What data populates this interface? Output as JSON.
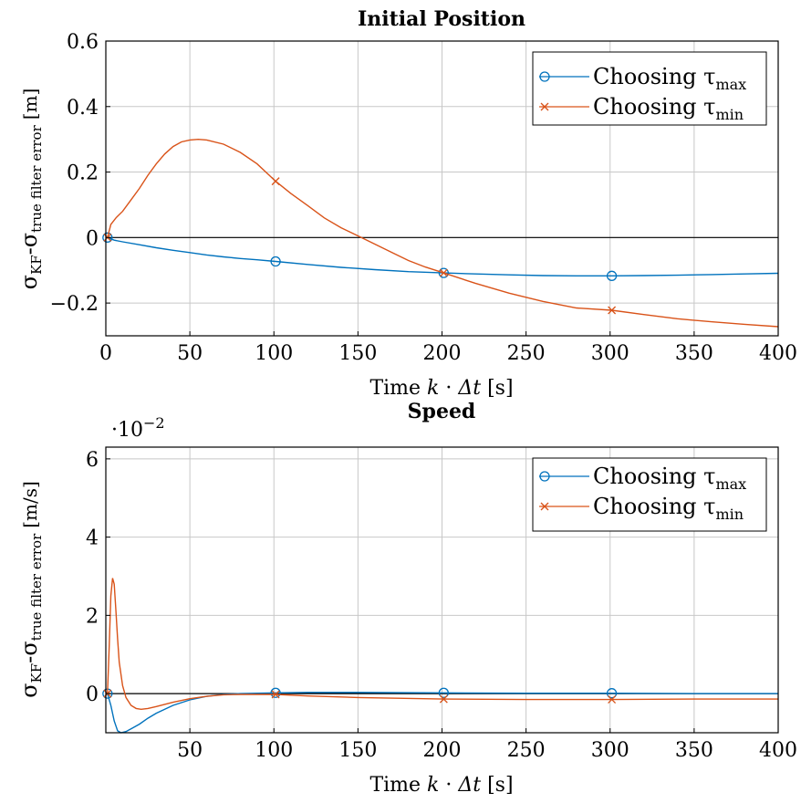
{
  "chart_data": [
    {
      "type": "line",
      "title": "Initial Position",
      "xlabel": "Time k · Δt [s]",
      "ylabel": "σ_KF - σ_true filter error [m]",
      "ylabel_main": "σ",
      "ylabel_sub1": "KF",
      "ylabel_mid": "-σ",
      "ylabel_sub2": "true filter error",
      "ylabel_unit": "[m]",
      "xlim": [
        0,
        400
      ],
      "ylim": [
        -0.3,
        0.6
      ],
      "xticks": [
        0,
        50,
        100,
        150,
        200,
        250,
        300,
        350,
        400
      ],
      "yticks": [
        -0.2,
        0,
        0.2,
        0.4,
        0.6
      ],
      "ytick_labels": [
        "−0.2",
        "0",
        "0.2",
        "0.4",
        "0.6"
      ],
      "grid": true,
      "zero_line": true,
      "legend_position": "top-right",
      "series": [
        {
          "name": "Choosing τmax",
          "name_main": "Choosing τ",
          "name_sub": "max",
          "color": "#0072BD",
          "marker": "circle",
          "x": [
            1,
            5,
            10,
            20,
            30,
            40,
            50,
            60,
            70,
            80,
            90,
            101,
            120,
            140,
            160,
            180,
            201,
            220,
            240,
            260,
            280,
            301,
            320,
            340,
            360,
            380,
            400
          ],
          "y": [
            0,
            -0.008,
            -0.013,
            -0.022,
            -0.031,
            -0.039,
            -0.046,
            -0.053,
            -0.059,
            -0.064,
            -0.068,
            -0.073,
            -0.082,
            -0.091,
            -0.098,
            -0.104,
            -0.108,
            -0.111,
            -0.114,
            -0.116,
            -0.117,
            -0.117,
            -0.116,
            -0.115,
            -0.113,
            -0.111,
            -0.109
          ],
          "marker_x": [
            1,
            101,
            201,
            301
          ],
          "marker_y": [
            0,
            -0.073,
            -0.108,
            -0.117
          ]
        },
        {
          "name": "Choosing τmin",
          "name_main": "Choosing τ",
          "name_sub": "min",
          "color": "#D95319",
          "marker": "cross",
          "x": [
            1,
            3,
            6,
            10,
            15,
            20,
            25,
            30,
            35,
            40,
            45,
            50,
            55,
            60,
            70,
            80,
            90,
            101,
            110,
            120,
            130,
            140,
            150,
            160,
            170,
            180,
            190,
            201,
            220,
            240,
            260,
            280,
            301,
            320,
            340,
            360,
            380,
            400
          ],
          "y": [
            0,
            0.04,
            0.06,
            0.08,
            0.115,
            0.15,
            0.19,
            0.225,
            0.255,
            0.278,
            0.292,
            0.298,
            0.3,
            0.298,
            0.285,
            0.26,
            0.225,
            0.172,
            0.135,
            0.098,
            0.06,
            0.03,
            0.005,
            -0.02,
            -0.045,
            -0.07,
            -0.09,
            -0.108,
            -0.14,
            -0.17,
            -0.195,
            -0.215,
            -0.222,
            -0.235,
            -0.248,
            -0.257,
            -0.265,
            -0.272
          ],
          "marker_x": [
            1,
            101,
            201,
            301
          ],
          "marker_y": [
            0,
            0.172,
            -0.108,
            -0.222
          ]
        }
      ]
    },
    {
      "type": "line",
      "title": "Speed",
      "xlabel": "Time k · Δt [s]",
      "ylabel": "σ_KF - σ_true filter error [m/s]",
      "ylabel_main": "σ",
      "ylabel_sub1": "KF",
      "ylabel_mid": "-σ",
      "ylabel_sub2": "true filter error",
      "ylabel_unit": "[m/s]",
      "scale_label": "·10",
      "scale_exponent": "−2",
      "xlim": [
        0,
        400
      ],
      "ylim": [
        -1,
        6.3
      ],
      "xticks": [
        50,
        100,
        150,
        200,
        250,
        300,
        350,
        400
      ],
      "yticks": [
        0,
        2,
        4,
        6
      ],
      "ytick_labels": [
        "0",
        "2",
        "4",
        "6"
      ],
      "grid": true,
      "zero_line": true,
      "legend_position": "top-right",
      "series": [
        {
          "name": "Choosing τmax",
          "name_main": "Choosing τ",
          "name_sub": "max",
          "color": "#0072BD",
          "marker": "circle",
          "x": [
            1,
            3,
            5,
            7,
            9,
            12,
            15,
            20,
            25,
            30,
            40,
            50,
            60,
            70,
            80,
            90,
            101,
            120,
            150,
            201,
            250,
            301,
            350,
            400
          ],
          "y": [
            0,
            -0.3,
            -0.7,
            -0.95,
            -1.0,
            -0.97,
            -0.9,
            -0.78,
            -0.63,
            -0.5,
            -0.3,
            -0.16,
            -0.07,
            -0.02,
            0.0,
            0.01,
            0.02,
            0.03,
            0.03,
            0.02,
            0.01,
            0.01,
            0.0,
            0.0
          ],
          "marker_x": [
            1,
            101,
            201,
            301
          ],
          "marker_y": [
            0,
            0.02,
            0.02,
            0.01
          ]
        },
        {
          "name": "Choosing τmin",
          "name_main": "Choosing τ",
          "name_sub": "min",
          "color": "#D95319",
          "marker": "cross",
          "x": [
            1,
            2,
            3,
            4,
            5,
            6,
            7,
            8,
            10,
            12,
            15,
            18,
            21,
            25,
            30,
            40,
            50,
            60,
            70,
            80,
            90,
            101,
            120,
            150,
            201,
            250,
            301,
            350,
            400
          ],
          "y": [
            0,
            1.2,
            2.5,
            2.95,
            2.8,
            2.1,
            1.4,
            0.8,
            0.2,
            -0.1,
            -0.3,
            -0.38,
            -0.4,
            -0.38,
            -0.33,
            -0.22,
            -0.13,
            -0.07,
            -0.03,
            -0.02,
            -0.02,
            -0.02,
            -0.06,
            -0.1,
            -0.14,
            -0.15,
            -0.15,
            -0.14,
            -0.14
          ],
          "marker_x": [
            1,
            101,
            201,
            301
          ],
          "marker_y": [
            0,
            -0.02,
            -0.14,
            -0.15
          ]
        }
      ]
    }
  ]
}
